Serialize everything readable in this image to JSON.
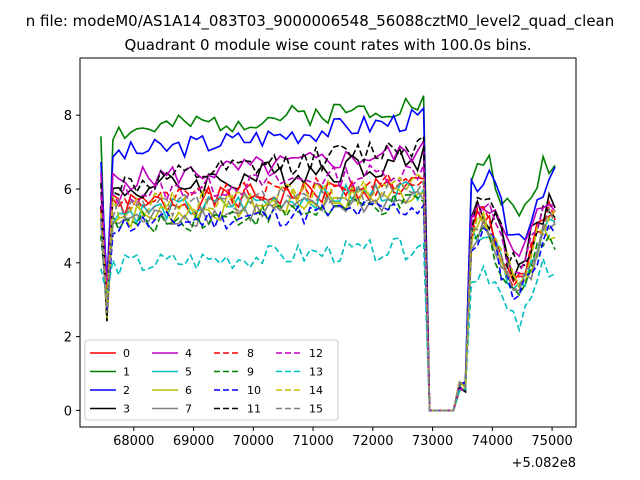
{
  "figure": {
    "suptitle": "n file: modeM0/AS1A14_083T03_9000006548_56088cztM0_level2_quad_clean"
  },
  "chart_data": {
    "type": "line",
    "title": "Quadrant 0 module wise count rates with 100.0s bins.",
    "xlabel": "",
    "ylabel": "",
    "x_offset_label": "+5.082e8",
    "xlim": [
      67100,
      75400
    ],
    "ylim": [
      -0.45,
      9.55
    ],
    "x_ticks": [
      68000,
      69000,
      70000,
      71000,
      72000,
      73000,
      74000,
      75000
    ],
    "x_tick_labels": [
      "68000",
      "69000",
      "70000",
      "71000",
      "72000",
      "73000",
      "74000",
      "75000"
    ],
    "y_ticks": [
      0,
      2,
      4,
      6,
      8
    ],
    "y_tick_labels": [
      "0",
      "2",
      "4",
      "6",
      "8"
    ],
    "grid": false,
    "legend": {
      "placement": "lower-left",
      "columns": 4
    },
    "x": {
      "start": 67450,
      "step": 100,
      "gap_values": [
        72950,
        73050,
        73150,
        73250,
        73350
      ],
      "end": 75050
    },
    "series": [
      {
        "name": "0",
        "color": "#ff0000",
        "dash": "solid",
        "base": 5.5,
        "noise": 0.35,
        "trend": 0.6,
        "seed": 1
      },
      {
        "name": "1",
        "color": "#008000",
        "dash": "solid",
        "base": 7.5,
        "noise": 0.3,
        "trend": 0.8,
        "seed": 2
      },
      {
        "name": "2",
        "color": "#0000ff",
        "dash": "solid",
        "base": 6.9,
        "noise": 0.3,
        "trend": 1.0,
        "seed": 3
      },
      {
        "name": "3",
        "color": "#000000",
        "dash": "solid",
        "base": 5.9,
        "noise": 0.4,
        "trend": 0.9,
        "seed": 4
      },
      {
        "name": "4",
        "color": "#bf00bf",
        "dash": "solid",
        "base": 6.2,
        "noise": 0.3,
        "trend": 0.8,
        "seed": 5
      },
      {
        "name": "5",
        "color": "#00bfbf",
        "dash": "solid",
        "base": 5.3,
        "noise": 0.3,
        "trend": 0.7,
        "seed": 6
      },
      {
        "name": "6",
        "color": "#bfbf00",
        "dash": "solid",
        "base": 5.2,
        "noise": 0.35,
        "trend": 0.7,
        "seed": 7
      },
      {
        "name": "7",
        "color": "#808080",
        "dash": "solid",
        "base": 5.1,
        "noise": 0.3,
        "trend": 0.6,
        "seed": 8
      },
      {
        "name": "8",
        "color": "#ff0000",
        "dash": "dashed",
        "base": 5.6,
        "noise": 0.3,
        "trend": 0.6,
        "seed": 9
      },
      {
        "name": "9",
        "color": "#008000",
        "dash": "dashed",
        "base": 5.0,
        "noise": 0.3,
        "trend": 0.6,
        "seed": 10
      },
      {
        "name": "10",
        "color": "#0000ff",
        "dash": "dashed",
        "base": 5.0,
        "noise": 0.3,
        "trend": 0.5,
        "seed": 11
      },
      {
        "name": "11",
        "color": "#000000",
        "dash": "dashed",
        "base": 6.0,
        "noise": 0.35,
        "trend": 1.2,
        "seed": 12
      },
      {
        "name": "12",
        "color": "#bf00bf",
        "dash": "dashed",
        "base": 5.8,
        "noise": 0.3,
        "trend": 0.7,
        "seed": 13
      },
      {
        "name": "13",
        "color": "#00bfbf",
        "dash": "dashed",
        "base": 3.9,
        "noise": 0.3,
        "trend": 0.5,
        "seed": 14
      },
      {
        "name": "14",
        "color": "#bfbf00",
        "dash": "dashed",
        "base": 5.5,
        "noise": 0.3,
        "trend": 0.6,
        "seed": 15
      },
      {
        "name": "15",
        "color": "#808080",
        "dash": "dashed",
        "base": 5.4,
        "noise": 0.3,
        "trend": 0.6,
        "seed": 16
      }
    ]
  }
}
